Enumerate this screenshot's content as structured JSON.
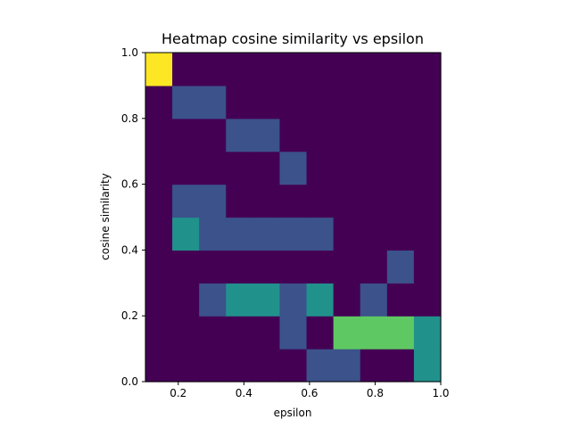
{
  "chart_data": {
    "type": "heatmap",
    "title": "Heatmap cosine similarity vs epsilon",
    "xlabel": "epsilon",
    "ylabel": "cosine similarity",
    "xlim": [
      0.1,
      1.0
    ],
    "ylim": [
      0.0,
      1.0
    ],
    "x_bins": 11,
    "y_bins": 10,
    "colormap": "viridis",
    "x_ticks": [
      "0.2",
      "0.4",
      "0.6",
      "0.8",
      "1.0"
    ],
    "y_ticks": [
      "0.0",
      "0.2",
      "0.4",
      "0.6",
      "0.8",
      "1.0"
    ],
    "vmax": 4,
    "values": [
      [
        0,
        0,
        0,
        0,
        0,
        0,
        1,
        1,
        0,
        0,
        2
      ],
      [
        0,
        0,
        0,
        0,
        0,
        1,
        0,
        3,
        3,
        3,
        2
      ],
      [
        0,
        0,
        1,
        2,
        2,
        1,
        2,
        0,
        1,
        0,
        0
      ],
      [
        0,
        0,
        0,
        0,
        0,
        0,
        0,
        0,
        0,
        1,
        0
      ],
      [
        0,
        2,
        1,
        1,
        1,
        1,
        1,
        0,
        0,
        0,
        0
      ],
      [
        0,
        1,
        1,
        0,
        0,
        0,
        0,
        0,
        0,
        0,
        0
      ],
      [
        0,
        0,
        0,
        0,
        0,
        1,
        0,
        0,
        0,
        0,
        0
      ],
      [
        0,
        0,
        0,
        1,
        1,
        0,
        0,
        0,
        0,
        0,
        0
      ],
      [
        0,
        1,
        1,
        0,
        0,
        0,
        0,
        0,
        0,
        0,
        0
      ],
      [
        4,
        0,
        0,
        0,
        0,
        0,
        0,
        0,
        0,
        0,
        0
      ]
    ],
    "colors": {
      "0": "#440154",
      "1": "#3b528b",
      "2": "#21918c",
      "3": "#5ec962",
      "4": "#fde725"
    }
  }
}
